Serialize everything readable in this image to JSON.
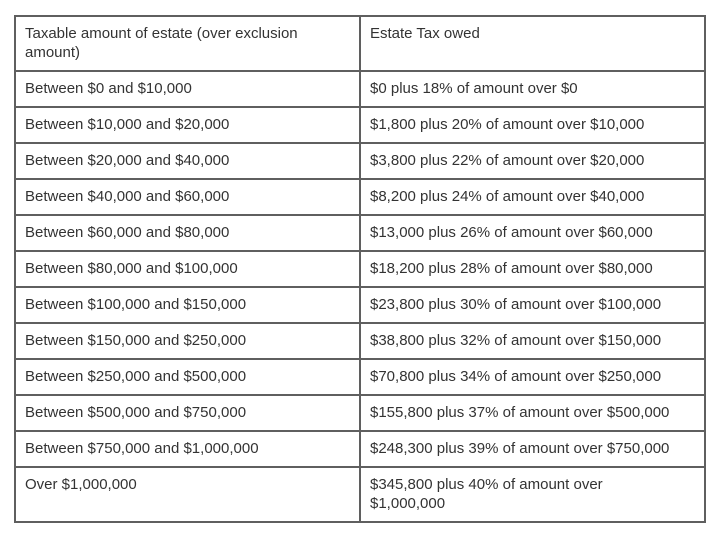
{
  "page": {
    "background": "#ffffff"
  },
  "colors": {
    "table_border": "#5f5f5f",
    "text": "#333333",
    "cell_background": "#ffffff"
  },
  "table": {
    "headers": [
      "Taxable amount of estate (over exclusion amount)",
      "Estate Tax owed"
    ],
    "rows": [
      [
        "Between $0 and $10,000",
        "$0 plus 18% of amount over $0"
      ],
      [
        "Between $10,000 and $20,000",
        "$1,800 plus 20% of amount over $10,000"
      ],
      [
        "Between $20,000 and $40,000",
        "$3,800 plus 22% of amount over $20,000"
      ],
      [
        "Between $40,000 and $60,000",
        "$8,200 plus 24% of amount over $40,000"
      ],
      [
        "Between $60,000 and $80,000",
        "$13,000 plus 26% of amount over $60,000"
      ],
      [
        "Between $80,000 and $100,000",
        "$18,200 plus 28% of amount over $80,000"
      ],
      [
        "Between $100,000 and $150,000",
        "$23,800 plus 30% of amount over $100,000"
      ],
      [
        "Between $150,000 and $250,000",
        "$38,800 plus 32% of amount over $150,000"
      ],
      [
        "Between $250,000 and $500,000",
        "$70,800 plus 34% of amount over $250,000"
      ],
      [
        "Between $500,000 and $750,000",
        "$155,800 plus 37% of amount over $500,000"
      ],
      [
        "Between $750,000 and $1,000,000",
        "$248,300 plus 39% of amount over $750,000"
      ],
      [
        "Over $1,000,000",
        "$345,800 plus 40% of amount over\n$1,000,000"
      ]
    ]
  }
}
